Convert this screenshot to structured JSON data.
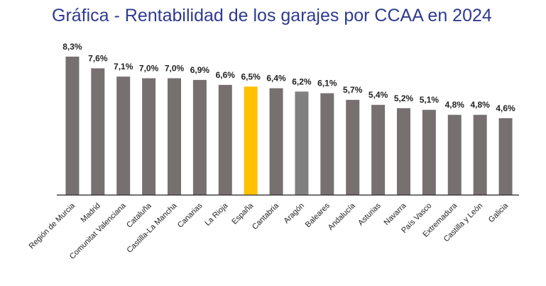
{
  "chart_data": {
    "type": "bar",
    "title": "Gráfica - Rentabilidad de los garajes por CCAA en 2024",
    "categories": [
      "Región de Murcia",
      "Madrid",
      "Comunitat Valenciana",
      "Cataluña",
      "Castilla-La Mancha",
      "Canarias",
      "La Rioja",
      "España",
      "Cantabria",
      "Aragón",
      "Baleares",
      "Andalucía",
      "Asturias",
      "Navarra",
      "País Vasco",
      "Extremadura",
      "Castilla y León",
      "Galicia"
    ],
    "values": [
      8.3,
      7.6,
      7.1,
      7.0,
      7.0,
      6.9,
      6.6,
      6.5,
      6.4,
      6.2,
      6.1,
      5.7,
      5.4,
      5.2,
      5.1,
      4.8,
      4.8,
      4.6
    ],
    "value_labels": [
      "8,3%",
      "7,6%",
      "7,1%",
      "7,0%",
      "7,0%",
      "6,9%",
      "6,6%",
      "6,5%",
      "6,4%",
      "6,2%",
      "6,1%",
      "5,7%",
      "5,4%",
      "5,2%",
      "5,1%",
      "4,8%",
      "4,8%",
      "4,6%"
    ],
    "colors": [
      "#767070",
      "#767070",
      "#767070",
      "#767070",
      "#767070",
      "#767070",
      "#767070",
      "#ffc000",
      "#767070",
      "#808080",
      "#767070",
      "#767070",
      "#767070",
      "#767070",
      "#767070",
      "#767070",
      "#767070",
      "#767070"
    ]
  }
}
